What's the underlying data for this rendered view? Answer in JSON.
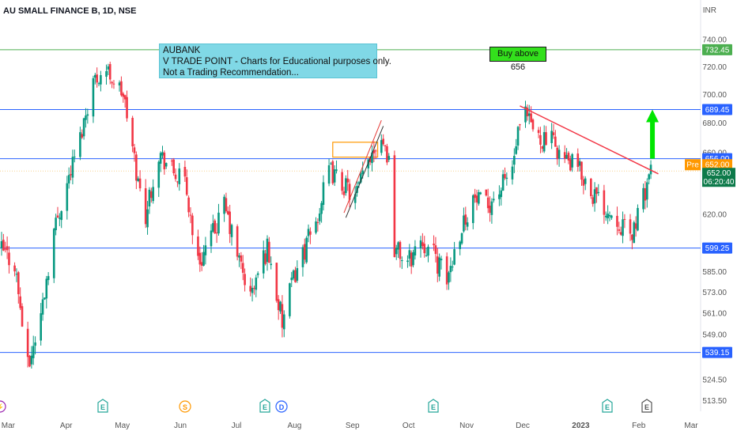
{
  "header": {
    "symbol": "AU SMALL FINANCE B, 1D, NSE",
    "currency": "INR"
  },
  "annotations": {
    "note_lines": [
      "AUBANK",
      "V TRADE POINT - Charts for Educational purposes only.",
      "Not a Trading Recommendation..."
    ],
    "buy_label": "Buy above 656",
    "pre_label": "Pre"
  },
  "colors": {
    "up": "#089981",
    "down": "#f23645",
    "green_level": "#4caf50",
    "blue_level": "#2962ff",
    "trendline": "#f23645",
    "arrow": "#00e600",
    "pre": "#ff9800"
  },
  "events": [
    {
      "icon": "E",
      "kind": "earnings",
      "color": "#26a69a"
    },
    {
      "icon": "S",
      "kind": "split",
      "color": "#ff9800"
    },
    {
      "icon": "E",
      "kind": "earnings",
      "color": "#26a69a"
    },
    {
      "icon": "D",
      "kind": "dividend",
      "color": "#2962ff"
    },
    {
      "icon": "E",
      "kind": "earnings",
      "color": "#26a69a"
    },
    {
      "icon": "E",
      "kind": "earnings",
      "color": "#26a69a"
    },
    {
      "icon": "E",
      "kind": "earnings",
      "color": "#555555"
    },
    {
      "icon": "⚡",
      "kind": "news",
      "color": "#9c27b0"
    }
  ],
  "chart_data": {
    "type": "candlestick",
    "title": "AU SMALL FINANCE B, 1D, NSE",
    "y_scale": "log",
    "ylim": [
      508,
      752
    ],
    "y_ticks": [
      "740.00",
      "720.00",
      "700.00",
      "680.00",
      "660.00",
      "640.00",
      "620.00",
      "599.25",
      "585.00",
      "573.00",
      "561.00",
      "549.00",
      "539.15",
      "524.50",
      "513.50"
    ],
    "x_ticks": [
      "Mar",
      "Apr",
      "May",
      "Jun",
      "Jul",
      "Aug",
      "Sep",
      "Oct",
      "Nov",
      "Dec",
      "2023",
      "Feb",
      "Mar"
    ],
    "horizontal_levels": [
      {
        "value": 732.45,
        "label": "732.45",
        "color": "#4caf50"
      },
      {
        "value": 689.45,
        "label": "689.45",
        "color": "#2962ff"
      },
      {
        "value": 656.0,
        "label": "656.00",
        "color": "#2962ff"
      },
      {
        "value": 599.25,
        "label": "599.25",
        "color": "#2962ff"
      },
      {
        "value": 539.15,
        "label": "539.15",
        "color": "#2962ff"
      }
    ],
    "pre_market": {
      "value": 652.0,
      "label": "652.00"
    },
    "last_price": {
      "value": 652.0,
      "label": "652.00",
      "countdown": "06:20:40"
    },
    "anchors": [
      {
        "date": "2022-02-28",
        "close": 598
      },
      {
        "date": "2022-03-07",
        "close": 590
      },
      {
        "date": "2022-03-14",
        "close": 530
      },
      {
        "date": "2022-03-21",
        "close": 560
      },
      {
        "date": "2022-03-28",
        "close": 610
      },
      {
        "date": "2022-04-11",
        "close": 670
      },
      {
        "date": "2022-04-18",
        "close": 710
      },
      {
        "date": "2022-04-25",
        "close": 718
      },
      {
        "date": "2022-05-04",
        "close": 700
      },
      {
        "date": "2022-05-12",
        "close": 640
      },
      {
        "date": "2022-05-16",
        "close": 620
      },
      {
        "date": "2022-05-23",
        "close": 660
      },
      {
        "date": "2022-06-01",
        "close": 645
      },
      {
        "date": "2022-06-06",
        "close": 640
      },
      {
        "date": "2022-06-13",
        "close": 590
      },
      {
        "date": "2022-06-20",
        "close": 605
      },
      {
        "date": "2022-06-27",
        "close": 625
      },
      {
        "date": "2022-07-04",
        "close": 595
      },
      {
        "date": "2022-07-11",
        "close": 570
      },
      {
        "date": "2022-07-20",
        "close": 600
      },
      {
        "date": "2022-07-28",
        "close": 555
      },
      {
        "date": "2022-08-04",
        "close": 585
      },
      {
        "date": "2022-08-15",
        "close": 615
      },
      {
        "date": "2022-08-22",
        "close": 648
      },
      {
        "date": "2022-08-29",
        "close": 640
      },
      {
        "date": "2022-09-05",
        "close": 630
      },
      {
        "date": "2022-09-14",
        "close": 662
      },
      {
        "date": "2022-09-19",
        "close": 672
      },
      {
        "date": "2022-09-23",
        "close": 655
      },
      {
        "date": "2022-09-26",
        "close": 600
      },
      {
        "date": "2022-10-03",
        "close": 590
      },
      {
        "date": "2022-10-10",
        "close": 605
      },
      {
        "date": "2022-10-17",
        "close": 595
      },
      {
        "date": "2022-10-24",
        "close": 580
      },
      {
        "date": "2022-10-31",
        "close": 610
      },
      {
        "date": "2022-11-07",
        "close": 630
      },
      {
        "date": "2022-11-14",
        "close": 625
      },
      {
        "date": "2022-11-21",
        "close": 635
      },
      {
        "date": "2022-11-28",
        "close": 650
      },
      {
        "date": "2022-12-01",
        "close": 672
      },
      {
        "date": "2022-12-05",
        "close": 685
      },
      {
        "date": "2022-12-12",
        "close": 670
      },
      {
        "date": "2022-12-19",
        "close": 668
      },
      {
        "date": "2022-12-26",
        "close": 655
      },
      {
        "date": "2023-01-02",
        "close": 650
      },
      {
        "date": "2023-01-09",
        "close": 635
      },
      {
        "date": "2023-01-16",
        "close": 625
      },
      {
        "date": "2023-01-23",
        "close": 618
      },
      {
        "date": "2023-01-30",
        "close": 605
      },
      {
        "date": "2023-02-06",
        "close": 630
      },
      {
        "date": "2023-02-10",
        "close": 652
      }
    ],
    "trendlines": [
      {
        "x1": "2022-12-02",
        "y1": 692,
        "x2": "2023-02-14",
        "y2": 646
      },
      {
        "x1": "2022-08-30",
        "y1": 621,
        "x2": "2022-09-19",
        "y2": 682
      },
      {
        "x1": "2022-08-31",
        "y1": 618,
        "x2": "2022-09-20",
        "y2": 678
      }
    ],
    "marked_zone": {
      "x1": "2022-08-24",
      "x2": "2022-09-17",
      "y1": 657,
      "y2": 667
    },
    "target_arrow": {
      "date": "2023-02-10",
      "from": 656,
      "to": 689.45
    }
  }
}
